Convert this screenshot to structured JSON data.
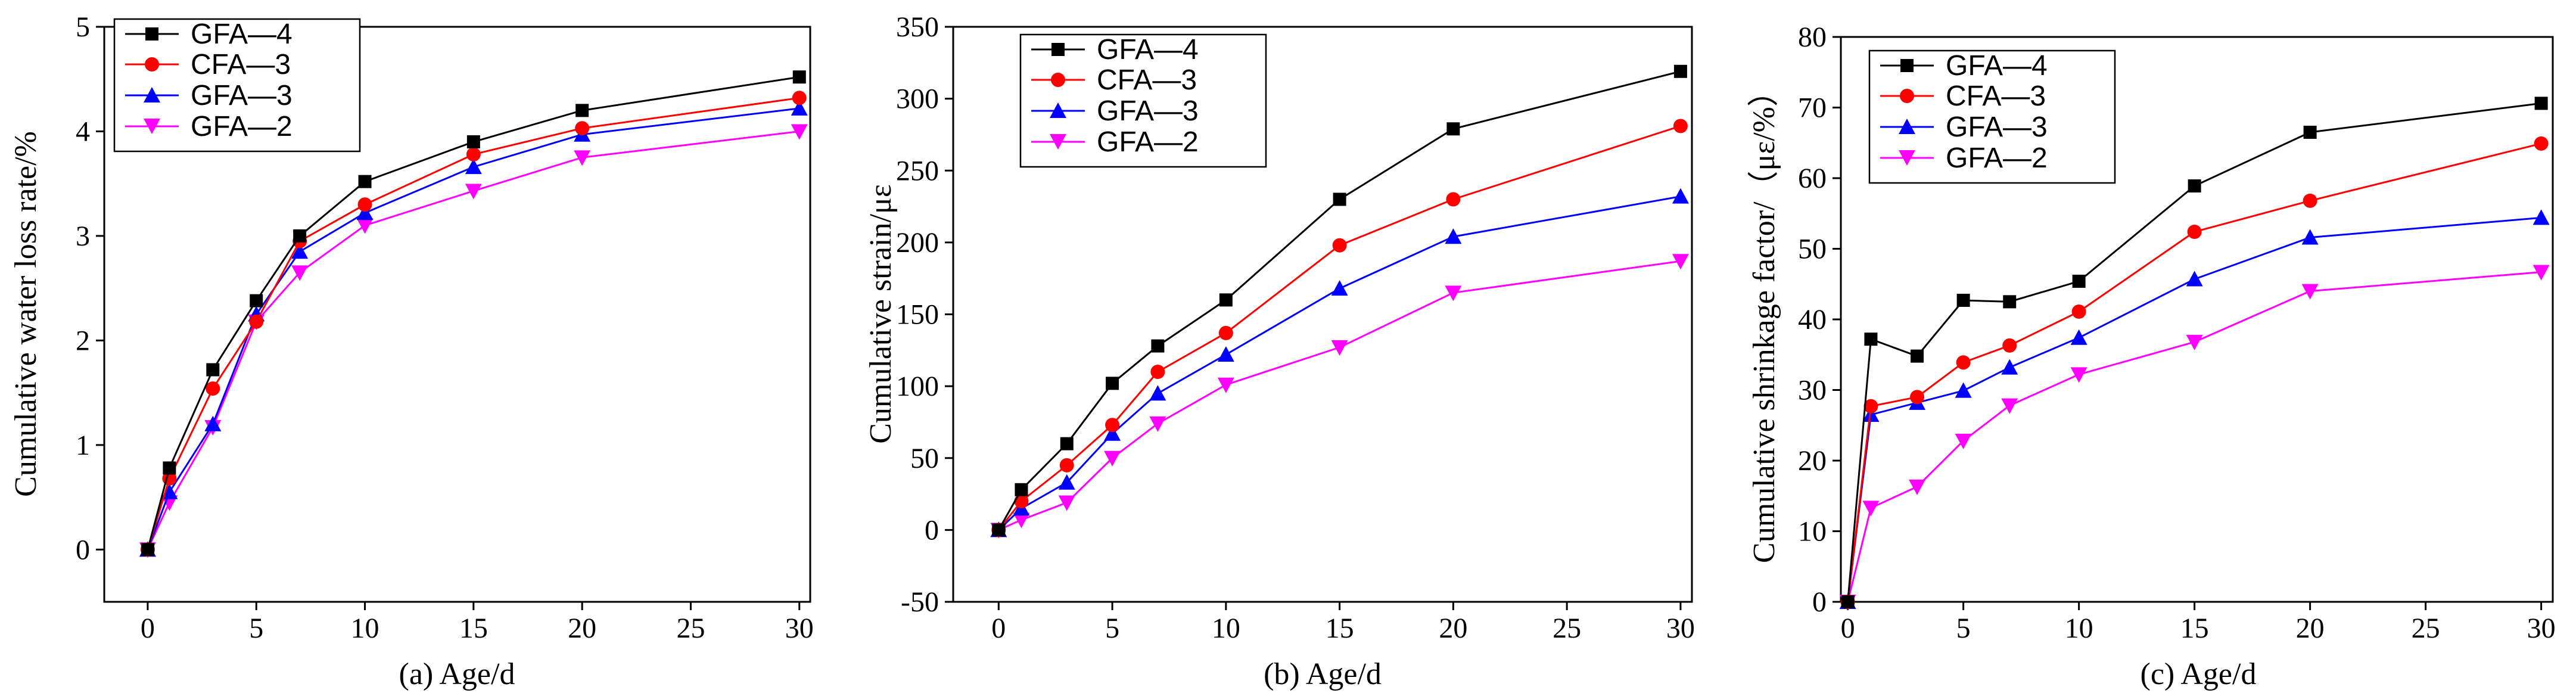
{
  "figure": {
    "chart_data": [
      {
        "type": "line",
        "caption": "(a) Age/d",
        "ylabel": "Cumulative water loss rate/%",
        "xlim": [
          -2,
          30.5
        ],
        "ylim": [
          -0.5,
          5
        ],
        "xticks": [
          0,
          5,
          10,
          15,
          20,
          25,
          30
        ],
        "yticks": [
          0,
          1,
          2,
          3,
          4,
          5
        ],
        "x": [
          0,
          1,
          3,
          5,
          7,
          10,
          15,
          20,
          30
        ],
        "series": [
          {
            "name": "GFA—4",
            "color": "#000000",
            "marker": "square",
            "values": [
              0,
              0.78,
              1.72,
              2.38,
              3.0,
              3.52,
              3.9,
              4.2,
              4.52
            ]
          },
          {
            "name": "CFA—3",
            "color": "#ff0000",
            "marker": "circle",
            "values": [
              0,
              0.68,
              1.54,
              2.18,
              2.95,
              3.3,
              3.78,
              4.03,
              4.32
            ]
          },
          {
            "name": "GFA—3",
            "color": "#0000ff",
            "marker": "triangle-up",
            "values": [
              0,
              0.55,
              1.2,
              2.25,
              2.85,
              3.22,
              3.66,
              3.97,
              4.22
            ]
          },
          {
            "name": "GFA—2",
            "color": "#ff00ff",
            "marker": "triangle-down",
            "values": [
              0,
              0.45,
              1.17,
              2.18,
              2.65,
              3.1,
              3.43,
              3.75,
              4.0
            ]
          }
        ]
      },
      {
        "type": "line",
        "caption": "(b) Age/d",
        "ylabel": "Cumulative strain/με",
        "xlim": [
          -2,
          30.5
        ],
        "ylim": [
          -50,
          350
        ],
        "xticks": [
          0,
          5,
          10,
          15,
          20,
          25,
          30
        ],
        "yticks": [
          -50,
          0,
          50,
          100,
          150,
          200,
          250,
          300,
          350
        ],
        "x": [
          0,
          1,
          3,
          5,
          7,
          10,
          15,
          20,
          30
        ],
        "series": [
          {
            "name": "GFA—4",
            "color": "#000000",
            "marker": "square",
            "values": [
              0,
              28,
              60,
              102,
              128,
              160,
              230,
              279,
              319
            ]
          },
          {
            "name": "CFA—3",
            "color": "#ff0000",
            "marker": "circle",
            "values": [
              0,
              20,
              45,
              73,
              110,
              137,
              198,
              230,
              281
            ]
          },
          {
            "name": "GFA—3",
            "color": "#0000ff",
            "marker": "triangle-up",
            "values": [
              0,
              15,
              33,
              67,
              95,
              122,
              168,
              204,
              232
            ]
          },
          {
            "name": "GFA—2",
            "color": "#ff00ff",
            "marker": "triangle-down",
            "values": [
              0,
              7,
              19,
              50,
              74,
              101,
              127,
              165,
              187
            ]
          }
        ]
      },
      {
        "type": "line",
        "caption": "(c) Age/d",
        "ylabel": "Cumulative shrinkage factor/（με/%）",
        "xlim": [
          -0.3,
          30.5
        ],
        "ylim": [
          0,
          80
        ],
        "xticks": [
          0,
          5,
          10,
          15,
          20,
          25,
          30
        ],
        "yticks": [
          0,
          10,
          20,
          30,
          40,
          50,
          60,
          70,
          80
        ],
        "x": [
          0,
          1,
          3,
          5,
          7,
          10,
          15,
          20,
          30
        ],
        "series": [
          {
            "name": "GFA—4",
            "color": "#000000",
            "marker": "square",
            "values": [
              0,
              37.2,
              34.8,
              42.7,
              42.5,
              45.4,
              58.9,
              66.5,
              70.6
            ]
          },
          {
            "name": "CFA—3",
            "color": "#ff0000",
            "marker": "circle",
            "values": [
              0,
              27.7,
              29.0,
              33.9,
              36.3,
              41.1,
              52.4,
              56.8,
              64.9
            ]
          },
          {
            "name": "GFA—3",
            "color": "#0000ff",
            "marker": "triangle-up",
            "values": [
              0,
              26.5,
              28.2,
              29.9,
              33.2,
              37.4,
              45.7,
              51.6,
              54.4
            ]
          },
          {
            "name": "GFA—2",
            "color": "#ff00ff",
            "marker": "triangle-down",
            "values": [
              0,
              13.3,
              16.3,
              22.8,
              27.8,
              32.2,
              36.8,
              44.0,
              46.7
            ]
          }
        ]
      }
    ]
  }
}
